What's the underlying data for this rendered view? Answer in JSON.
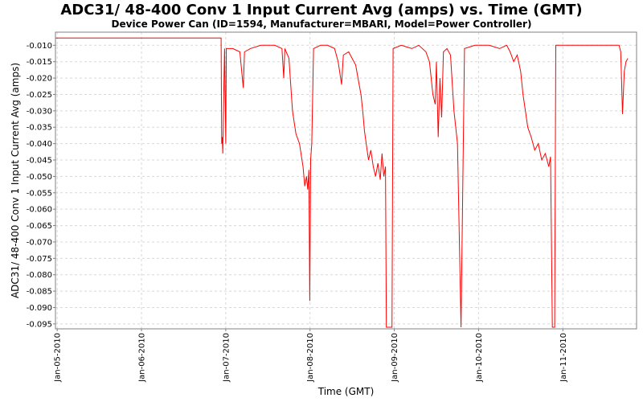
{
  "chart_data": {
    "type": "line",
    "title": "ADC31/ 48-400 Conv 1 Input Current  Avg (amps) vs. Time (GMT)",
    "subtitle": "Device Power Can (ID=1594, Manufacturer=MBARI, Model=Power Controller)",
    "xlabel": "Time (GMT)",
    "ylabel": "ADC31/ 48-400 Conv 1 Input Current  Avg (amps)",
    "xlim": [
      "2010-01-04T23:30",
      "2010-01-11T21:00"
    ],
    "ylim": [
      -0.0965,
      -0.006
    ],
    "x_ticks": [
      "Jan-05-2010",
      "Jan-06-2010",
      "Jan-07-2010",
      "Jan-08-2010",
      "Jan-09-2010",
      "Jan-10-2010",
      "Jan-11-2010"
    ],
    "y_ticks": [
      "-0.010",
      "-0.015",
      "-0.020",
      "-0.025",
      "-0.030",
      "-0.035",
      "-0.040",
      "-0.045",
      "-0.050",
      "-0.055",
      "-0.060",
      "-0.065",
      "-0.070",
      "-0.075",
      "-0.080",
      "-0.085",
      "-0.090",
      "-0.095"
    ],
    "y_tick_values": [
      -0.01,
      -0.015,
      -0.02,
      -0.025,
      -0.03,
      -0.035,
      -0.04,
      -0.045,
      -0.05,
      -0.055,
      -0.06,
      -0.065,
      -0.07,
      -0.075,
      -0.08,
      -0.085,
      -0.09,
      -0.095
    ],
    "grid": true,
    "line_color": "#ff0000",
    "series": [
      {
        "points": [
          [
            "2010-01-04T23:30",
            -0.0078
          ],
          [
            "2010-01-05T12:00",
            -0.0078
          ],
          [
            "2010-01-06T00:00",
            -0.0078
          ],
          [
            "2010-01-06T12:00",
            -0.0078
          ],
          [
            "2010-01-06T22:40",
            -0.0078
          ],
          [
            "2010-01-06T22:50",
            -0.04
          ],
          [
            "2010-01-06T23:00",
            -0.038
          ],
          [
            "2010-01-06T23:10",
            -0.043
          ],
          [
            "2010-01-06T23:30",
            -0.02
          ],
          [
            "2010-01-06T23:40",
            -0.011
          ],
          [
            "2010-01-07T00:00",
            -0.04
          ],
          [
            "2010-01-07T00:10",
            -0.011
          ],
          [
            "2010-01-07T02:00",
            -0.011
          ],
          [
            "2010-01-07T04:00",
            -0.012
          ],
          [
            "2010-01-07T05:00",
            -0.023
          ],
          [
            "2010-01-07T05:20",
            -0.012
          ],
          [
            "2010-01-07T07:00",
            -0.011
          ],
          [
            "2010-01-07T10:00",
            -0.01
          ],
          [
            "2010-01-07T14:00",
            -0.01
          ],
          [
            "2010-01-07T16:00",
            -0.011
          ],
          [
            "2010-01-07T16:30",
            -0.02
          ],
          [
            "2010-01-07T16:50",
            -0.011
          ],
          [
            "2010-01-07T18:00",
            -0.014
          ],
          [
            "2010-01-07T19:00",
            -0.03
          ],
          [
            "2010-01-07T20:00",
            -0.037
          ],
          [
            "2010-01-07T21:00",
            -0.04
          ],
          [
            "2010-01-07T22:00",
            -0.047
          ],
          [
            "2010-01-07T22:30",
            -0.053
          ],
          [
            "2010-01-07T23:00",
            -0.05
          ],
          [
            "2010-01-07T23:20",
            -0.054
          ],
          [
            "2010-01-07T23:40",
            -0.048
          ],
          [
            "2010-01-07T23:55",
            -0.088
          ],
          [
            "2010-01-08T00:10",
            -0.045
          ],
          [
            "2010-01-08T00:30",
            -0.04
          ],
          [
            "2010-01-08T01:00",
            -0.011
          ],
          [
            "2010-01-08T03:00",
            -0.01
          ],
          [
            "2010-01-08T05:00",
            -0.01
          ],
          [
            "2010-01-08T07:00",
            -0.011
          ],
          [
            "2010-01-08T08:00",
            -0.015
          ],
          [
            "2010-01-08T09:00",
            -0.022
          ],
          [
            "2010-01-08T09:30",
            -0.013
          ],
          [
            "2010-01-08T11:00",
            -0.012
          ],
          [
            "2010-01-08T12:00",
            -0.014
          ],
          [
            "2010-01-08T13:00",
            -0.016
          ],
          [
            "2010-01-08T13:40",
            -0.02
          ],
          [
            "2010-01-08T14:30",
            -0.025
          ],
          [
            "2010-01-08T15:00",
            -0.03
          ],
          [
            "2010-01-08T15:30",
            -0.036
          ],
          [
            "2010-01-08T16:00",
            -0.04
          ],
          [
            "2010-01-08T16:40",
            -0.045
          ],
          [
            "2010-01-08T17:20",
            -0.042
          ],
          [
            "2010-01-08T18:00",
            -0.047
          ],
          [
            "2010-01-08T18:40",
            -0.05
          ],
          [
            "2010-01-08T19:20",
            -0.046
          ],
          [
            "2010-01-08T20:00",
            -0.051
          ],
          [
            "2010-01-08T20:30",
            -0.043
          ],
          [
            "2010-01-08T21:00",
            -0.05
          ],
          [
            "2010-01-08T21:30",
            -0.047
          ],
          [
            "2010-01-08T21:45",
            -0.096
          ],
          [
            "2010-01-08T23:20",
            -0.096
          ],
          [
            "2010-01-08T23:40",
            -0.011
          ],
          [
            "2010-01-09T02:00",
            -0.01
          ],
          [
            "2010-01-09T05:00",
            -0.011
          ],
          [
            "2010-01-09T07:00",
            -0.01
          ],
          [
            "2010-01-09T09:00",
            -0.012
          ],
          [
            "2010-01-09T10:00",
            -0.015
          ],
          [
            "2010-01-09T11:00",
            -0.025
          ],
          [
            "2010-01-09T11:40",
            -0.028
          ],
          [
            "2010-01-09T12:00",
            -0.015
          ],
          [
            "2010-01-09T12:30",
            -0.038
          ],
          [
            "2010-01-09T13:00",
            -0.02
          ],
          [
            "2010-01-09T13:30",
            -0.032
          ],
          [
            "2010-01-09T14:00",
            -0.012
          ],
          [
            "2010-01-09T15:00",
            -0.011
          ],
          [
            "2010-01-09T16:00",
            -0.013
          ],
          [
            "2010-01-09T17:00",
            -0.03
          ],
          [
            "2010-01-09T18:00",
            -0.04
          ],
          [
            "2010-01-09T19:00",
            -0.096
          ],
          [
            "2010-01-09T20:00",
            -0.011
          ],
          [
            "2010-01-09T23:00",
            -0.01
          ],
          [
            "2010-01-10T03:00",
            -0.01
          ],
          [
            "2010-01-10T06:00",
            -0.011
          ],
          [
            "2010-01-10T08:00",
            -0.01
          ],
          [
            "2010-01-10T09:00",
            -0.012
          ],
          [
            "2010-01-10T10:00",
            -0.015
          ],
          [
            "2010-01-10T11:00",
            -0.013
          ],
          [
            "2010-01-10T12:00",
            -0.018
          ],
          [
            "2010-01-10T12:40",
            -0.025
          ],
          [
            "2010-01-10T13:20",
            -0.03
          ],
          [
            "2010-01-10T14:00",
            -0.035
          ],
          [
            "2010-01-10T15:00",
            -0.038
          ],
          [
            "2010-01-10T16:00",
            -0.042
          ],
          [
            "2010-01-10T17:00",
            -0.04
          ],
          [
            "2010-01-10T18:00",
            -0.045
          ],
          [
            "2010-01-10T19:00",
            -0.043
          ],
          [
            "2010-01-10T20:00",
            -0.047
          ],
          [
            "2010-01-10T20:30",
            -0.044
          ],
          [
            "2010-01-10T21:00",
            -0.096
          ],
          [
            "2010-01-10T21:40",
            -0.096
          ],
          [
            "2010-01-10T22:00",
            -0.01
          ],
          [
            "2010-01-11T02:00",
            -0.01
          ],
          [
            "2010-01-11T06:00",
            -0.01
          ],
          [
            "2010-01-11T10:00",
            -0.01
          ],
          [
            "2010-01-11T16:00",
            -0.01
          ],
          [
            "2010-01-11T16:30",
            -0.012
          ],
          [
            "2010-01-11T17:00",
            -0.031
          ],
          [
            "2010-01-11T17:30",
            -0.018
          ],
          [
            "2010-01-11T18:00",
            -0.015
          ],
          [
            "2010-01-11T18:30",
            -0.014
          ]
        ]
      }
    ]
  }
}
